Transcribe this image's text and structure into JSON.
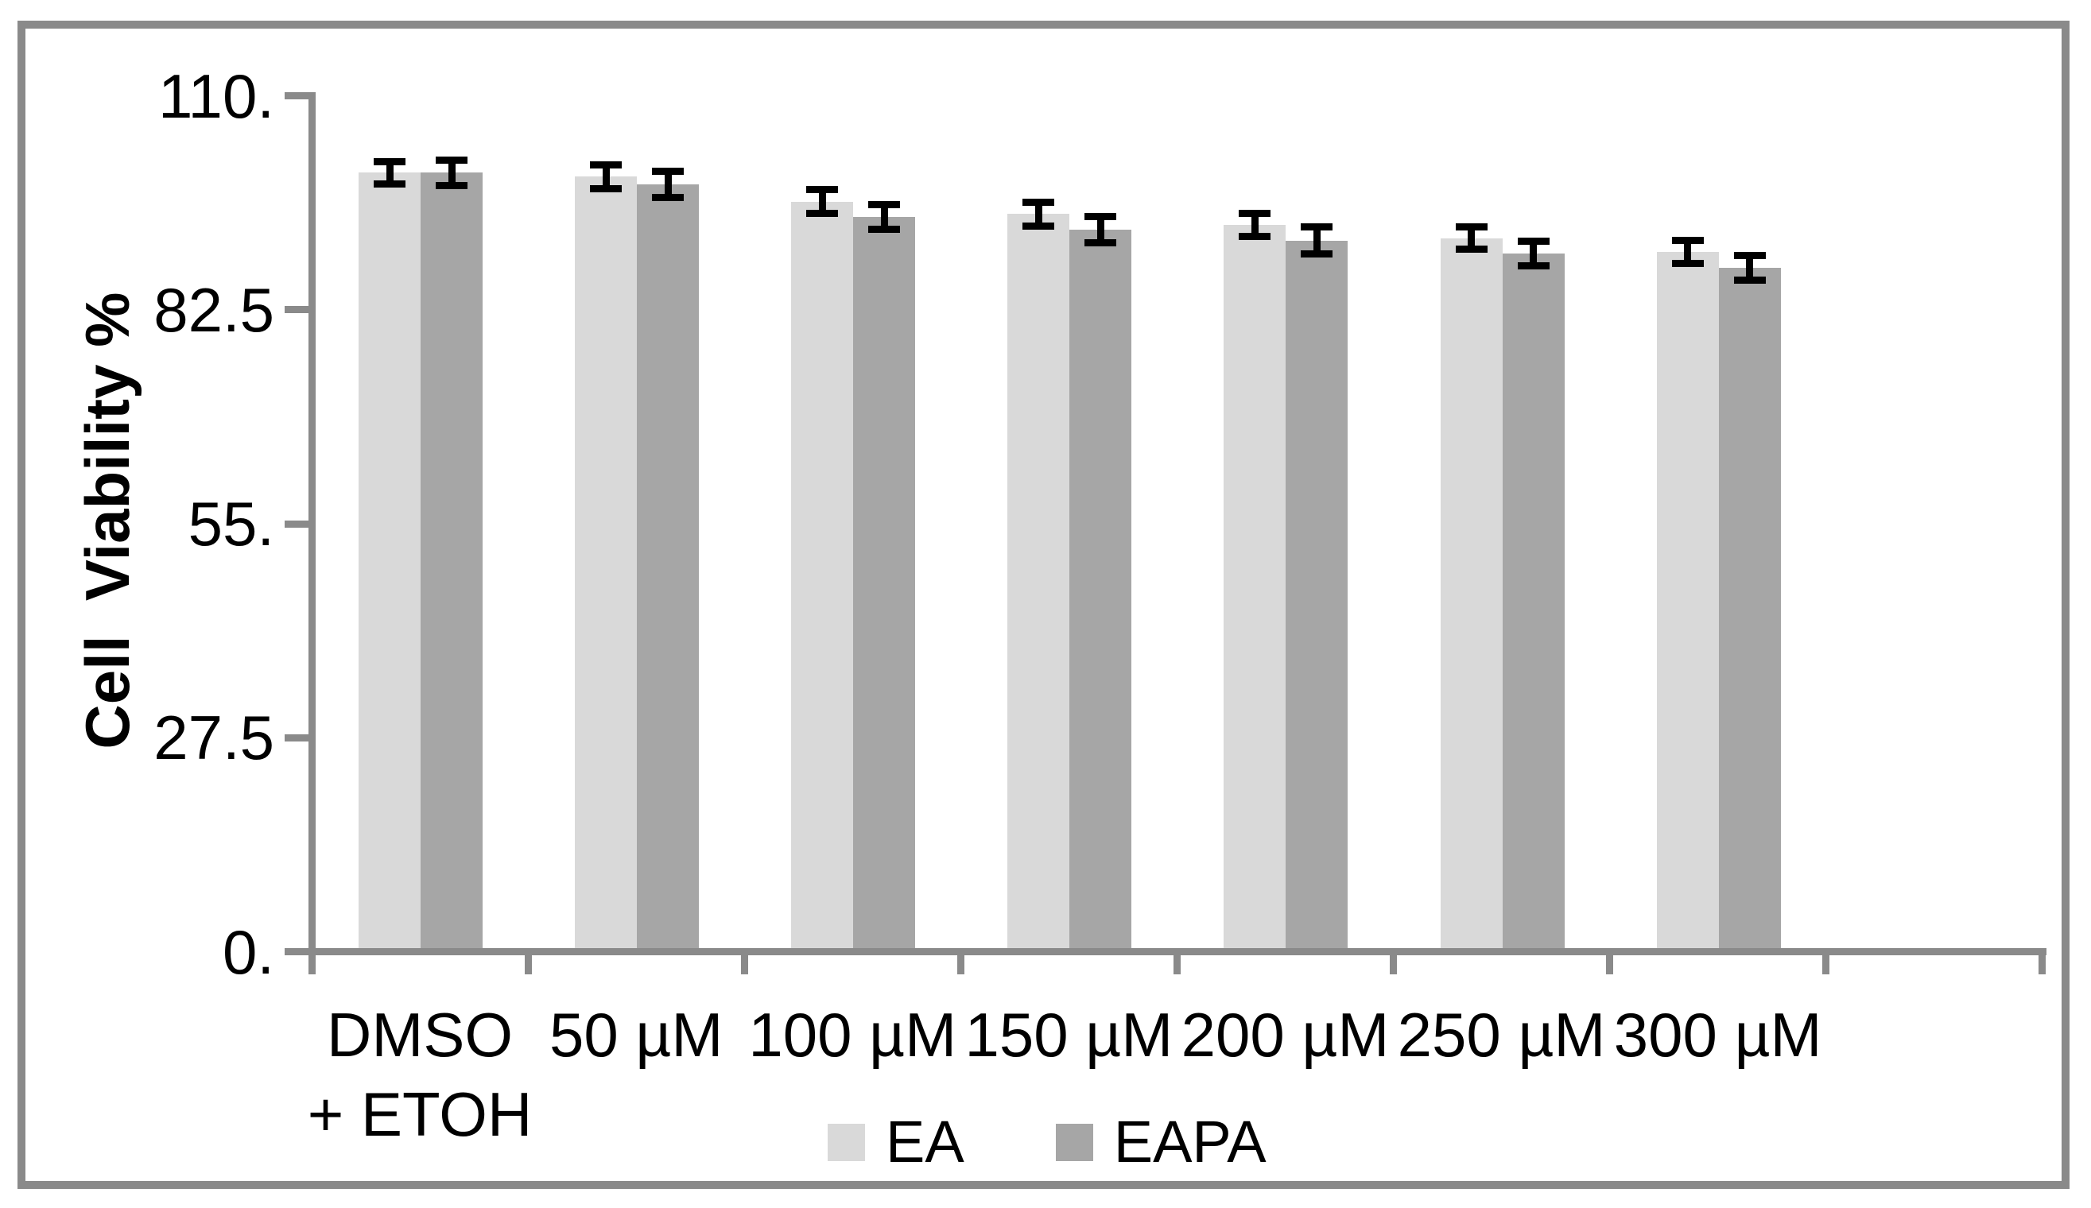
{
  "figure": {
    "background_color": "#ffffff",
    "border_color": "#8a8a8a",
    "axis_color": "#8a8a8a",
    "text_color": "#000000"
  },
  "chart_data": {
    "type": "bar",
    "title": "",
    "xlabel": "",
    "ylabel": "Cell  Viability %",
    "ylim": [
      0,
      110
    ],
    "grid": false,
    "legend_position": "bottom-center",
    "error_bar_color": "#000000",
    "yticks": [
      {
        "value": 110,
        "label": "110."
      },
      {
        "value": 82.5,
        "label": "82.5"
      },
      {
        "value": 55,
        "label": "55."
      },
      {
        "value": 27.5,
        "label": "27.5"
      },
      {
        "value": 0,
        "label": "0."
      }
    ],
    "categories": [
      [
        "DMSO",
        "+ ETOH"
      ],
      [
        "50 µM"
      ],
      [
        "100 µM"
      ],
      [
        "150 µM"
      ],
      [
        "200 µM"
      ],
      [
        "250 µM"
      ],
      [
        "300 µM"
      ]
    ],
    "series": [
      {
        "name": "EA",
        "color": "#d9d9d9",
        "values": [
          100.1,
          99.6,
          96.4,
          94.8,
          93.4,
          91.7,
          89.9
        ],
        "errors": [
          1.4,
          1.5,
          1.5,
          1.5,
          1.5,
          1.4,
          1.5
        ]
      },
      {
        "name": "EAPA",
        "color": "#a6a6a6",
        "values": [
          100.1,
          98.6,
          94.4,
          92.8,
          91.4,
          89.7,
          87.9
        ],
        "errors": [
          1.6,
          1.7,
          1.6,
          1.7,
          1.7,
          1.6,
          1.6
        ]
      }
    ]
  }
}
